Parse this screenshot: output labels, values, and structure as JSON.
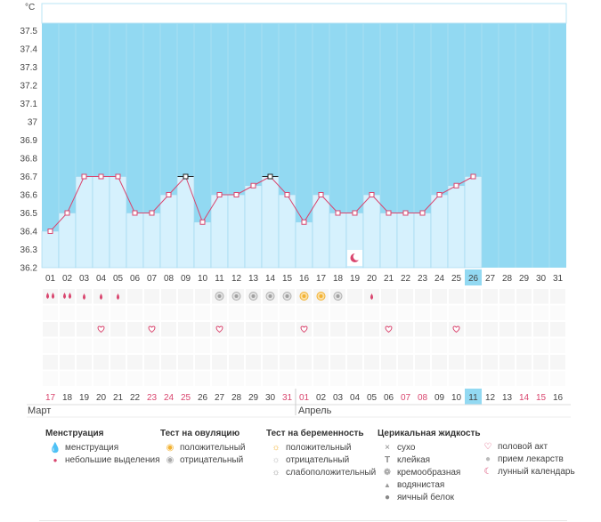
{
  "chart_data": {
    "type": "line",
    "y_unit_label": "°C",
    "ylim": [
      36.2,
      37.6
    ],
    "y_ticks": [
      "37.5",
      "37.4",
      "37.3",
      "37.2",
      "37.1",
      "37",
      "36.9",
      "36.8",
      "36.7",
      "36.6",
      "36.5",
      "36.4",
      "36.3",
      "36.2"
    ],
    "cycle_days": [
      "01",
      "02",
      "03",
      "04",
      "05",
      "06",
      "07",
      "08",
      "09",
      "10",
      "11",
      "12",
      "13",
      "14",
      "15",
      "16",
      "17",
      "18",
      "19",
      "20",
      "21",
      "22",
      "23",
      "24",
      "25",
      "26",
      "27",
      "28",
      "29",
      "30",
      "31"
    ],
    "dates": [
      "17",
      "18",
      "19",
      "20",
      "21",
      "22",
      "23",
      "24",
      "25",
      "26",
      "27",
      "28",
      "29",
      "30",
      "31",
      "01",
      "02",
      "03",
      "04",
      "05",
      "06",
      "07",
      "08",
      "09",
      "10",
      "11",
      "12",
      "13",
      "14",
      "15",
      "16"
    ],
    "weekend_date_indices": [
      0,
      6,
      7,
      8,
      14,
      15,
      21,
      22,
      28,
      29
    ],
    "current_day_index": 25,
    "temperatures": [
      36.4,
      36.5,
      36.7,
      36.7,
      36.7,
      36.5,
      36.5,
      36.6,
      36.7,
      36.45,
      36.6,
      36.6,
      36.65,
      36.7,
      36.6,
      36.45,
      36.6,
      36.5,
      36.5,
      36.6,
      36.5,
      36.5,
      36.5,
      36.6,
      36.65,
      36.7
    ],
    "highlighted_point_indices": [
      8,
      13
    ],
    "colors": {
      "plot_background": "#92d9f2",
      "bar_fill": "#d6f1fd",
      "bar_stroke": "#9bd6ee",
      "line": "#d9456e",
      "marker_stroke": "#d9456e",
      "current_day_bg": "#92d9f2",
      "weekend_text": "#d9456e"
    }
  },
  "markers": {
    "menstruation": [
      {
        "day": 0,
        "kind": "heavy"
      },
      {
        "day": 1,
        "kind": "heavy"
      },
      {
        "day": 2,
        "kind": "light"
      },
      {
        "day": 3,
        "kind": "light"
      },
      {
        "day": 4,
        "kind": "light"
      },
      {
        "day": 19,
        "kind": "light"
      }
    ],
    "ovulation_tests": [
      {
        "day": 10,
        "result": "negative"
      },
      {
        "day": 11,
        "result": "negative"
      },
      {
        "day": 12,
        "result": "negative"
      },
      {
        "day": 13,
        "result": "negative"
      },
      {
        "day": 14,
        "result": "negative"
      },
      {
        "day": 15,
        "result": "positive"
      },
      {
        "day": 16,
        "result": "positive"
      },
      {
        "day": 17,
        "result": "negative"
      }
    ],
    "intercourse_days": [
      3,
      6,
      10,
      15,
      20,
      24
    ],
    "lunar_days": [
      18
    ]
  },
  "months": {
    "first": "Март",
    "second": "Апрель",
    "second_start_index": 15
  },
  "legend": {
    "menstruation": {
      "title": "Менструация",
      "items": [
        "менструация",
        "небольшие выделения"
      ]
    },
    "ovulation": {
      "title": "Тест на овуляцию",
      "items": [
        "положительный",
        "отрицательный"
      ]
    },
    "pregnancy": {
      "title": "Тест на беременность",
      "items": [
        "положительный",
        "отрицательный",
        "слабоположительный"
      ]
    },
    "cervical": {
      "title": "Церикальная жидкость",
      "items": [
        "сухо",
        "клейкая",
        "кремообразная",
        "водянистая",
        "яичный белок"
      ]
    },
    "other": {
      "items": [
        "половой акт",
        "прием лекарств",
        "лунный календарь"
      ]
    },
    "icons": {
      "menstruation": [
        "menstruation-heavy-icon",
        "menstruation-light-icon"
      ],
      "ovulation": [
        "ovulation-positive-icon",
        "ovulation-negative-icon"
      ],
      "pregnancy": [
        "pregnancy-positive-icon",
        "pregnancy-negative-icon",
        "pregnancy-weak-positive-icon"
      ],
      "cervical": [
        "dry-cross-icon",
        "sticky-icon",
        "creamy-icon",
        "watery-drop-icon",
        "egg-white-drop-icon"
      ],
      "other": [
        "heart-icon",
        "pill-icon",
        "moon-icon"
      ]
    }
  }
}
